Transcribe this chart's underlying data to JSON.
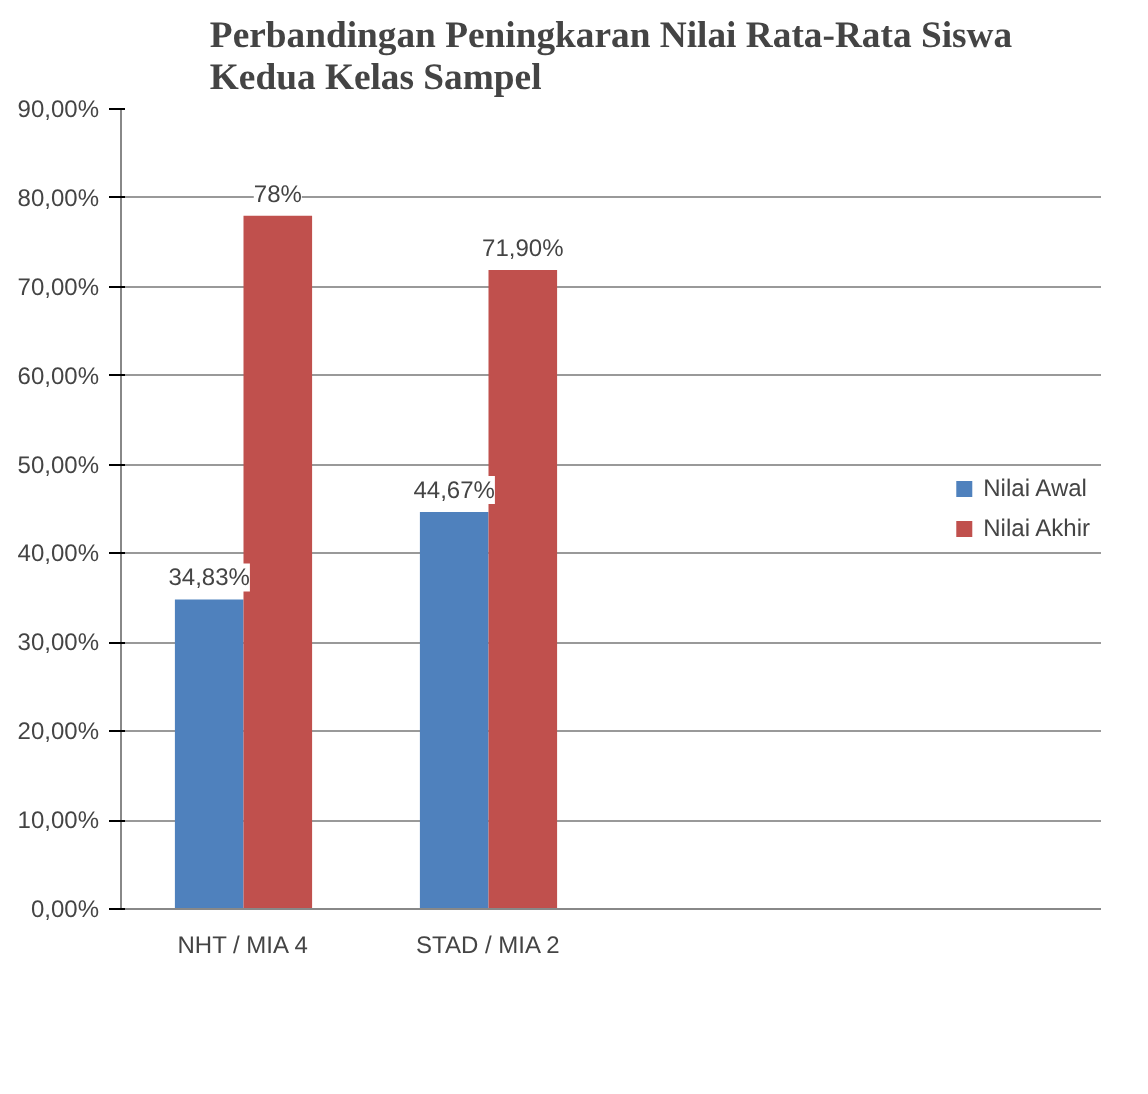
{
  "chart_data": {
    "type": "bar",
    "title": "Perbandingan Peningkaran Nilai Rata-Rata Siswa\nKedua Kelas Sampel",
    "categories": [
      "NHT / MIA 4",
      "STAD / MIA 2",
      null,
      null
    ],
    "series": [
      {
        "name": "Nilai Awal",
        "color": "#4f81bd",
        "values": [
          34.83,
          44.67,
          null,
          null
        ],
        "value_labels": [
          "34,83%",
          "44,67%",
          null,
          null
        ]
      },
      {
        "name": "Nilai Akhir",
        "color": "#c0504d",
        "values": [
          78,
          71.9,
          null,
          null
        ],
        "value_labels": [
          "78%",
          "71,90%",
          null,
          null
        ]
      }
    ],
    "ylim": [
      0,
      90
    ],
    "yticks": [
      {
        "value": 0,
        "label": "0,00%"
      },
      {
        "value": 10,
        "label": "10,00%"
      },
      {
        "value": 20,
        "label": "20,00%"
      },
      {
        "value": 30,
        "label": "30,00%"
      },
      {
        "value": 40,
        "label": "40,00%"
      },
      {
        "value": 50,
        "label": "50,00%"
      },
      {
        "value": 60,
        "label": "60,00%"
      },
      {
        "value": 70,
        "label": "70,00%"
      },
      {
        "value": 80,
        "label": "80,00%"
      },
      {
        "value": 90,
        "label": "90,00%"
      }
    ],
    "grid": "y",
    "legend": "right"
  }
}
